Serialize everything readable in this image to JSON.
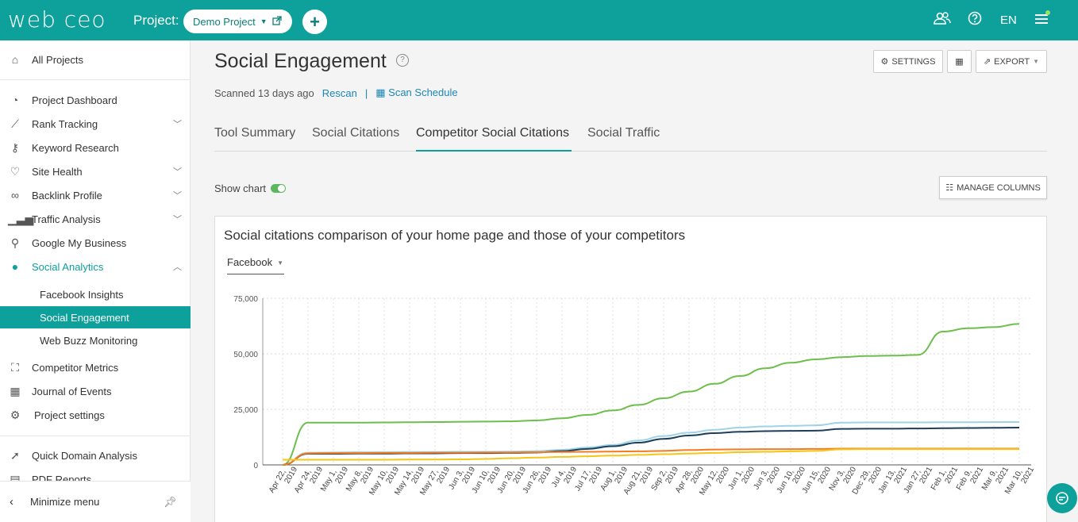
{
  "topbar": {
    "logo": "web ceo",
    "project_label": "Project:",
    "project_name": "Demo Project",
    "add_label": "+",
    "lang": "EN"
  },
  "sidebar": {
    "all_projects": "All Projects",
    "items": [
      {
        "label": "Project Dashboard",
        "icon": "dashboard-icon"
      },
      {
        "label": "Rank Tracking",
        "icon": "chart-icon"
      },
      {
        "label": "Keyword Research",
        "icon": "key-icon"
      },
      {
        "label": "Site Health",
        "icon": "heartbeat-icon"
      },
      {
        "label": "Backlink Profile",
        "icon": "link-icon"
      },
      {
        "label": "Traffic Analysis",
        "icon": "bars-icon"
      },
      {
        "label": "Google My Business",
        "icon": "map-pin-icon"
      },
      {
        "label": "Social Analytics",
        "icon": "chat-icon"
      }
    ],
    "sub_items": [
      "Facebook Insights",
      "Social Engagement",
      "Web Buzz Monitoring"
    ],
    "items2": [
      {
        "label": "Competitor Metrics",
        "icon": "binoculars-icon"
      },
      {
        "label": "Journal of Events",
        "icon": "calendar-icon"
      },
      {
        "label": "Project settings",
        "icon": "gear-icon"
      }
    ],
    "items3": [
      {
        "label": "Quick Domain Analysis",
        "icon": "rocket-icon"
      },
      {
        "label": "PDF Reports",
        "icon": "pdf-icon"
      }
    ],
    "minimize": "Minimize menu"
  },
  "main": {
    "title": "Social Engagement",
    "settings_label": "SETTINGS",
    "export_label": "EXPORT",
    "scanned": "Scanned 13 days ago",
    "rescan": "Rescan",
    "separator": "|",
    "scan_schedule": "Scan Schedule",
    "tabs": [
      "Tool Summary",
      "Social Citations",
      "Competitor Social Citations",
      "Social Traffic"
    ],
    "show_chart": "Show chart",
    "manage_columns": "MANAGE COLUMNS",
    "chart_title": "Social citations comparison of your home page and those of your competitors",
    "network": "Facebook"
  },
  "colors": {
    "brand": "#0ea09a",
    "green": "#6dbf4b",
    "light_blue": "#9fd3e6",
    "navy": "#1e3f5a",
    "orange": "#f47b20",
    "yellow": "#f5c518"
  },
  "chart_data": {
    "type": "line",
    "categories": [
      "Apr 22, 2019",
      "Apr 24, 2019",
      "May 1, 2019",
      "May 8, 2019",
      "May 10, 2019",
      "May 14, 2019",
      "May 27, 2019",
      "Jun 3, 2019",
      "Jun 10, 2019",
      "Jun 20, 2019",
      "Jun 26, 2019",
      "Jul 4, 2019",
      "Jul 17, 2019",
      "Aug 1, 2019",
      "Aug 21, 2019",
      "Sep 2, 2019",
      "Apr 28, 2020",
      "May 12, 2020",
      "Jun 1, 2020",
      "Jun 3, 2020",
      "Jun 10, 2020",
      "Jun 15, 2020",
      "Nov 3, 2020",
      "Dec 29, 2020",
      "Jan 13, 2021",
      "Jan 27, 2021",
      "Feb 1, 2021",
      "Feb 9, 2021",
      "Mar 9, 2021",
      "Mar 10, 2021"
    ],
    "ylim": [
      0,
      75000
    ],
    "yticks": [
      "0",
      "25,000",
      "50,000",
      "75,000"
    ],
    "series": [
      {
        "color": "#6dbf4b",
        "values": [
          0,
          19000,
          19000,
          19000,
          19100,
          19200,
          19300,
          19400,
          19500,
          19600,
          20000,
          21000,
          22500,
          24500,
          27000,
          30000,
          33000,
          36500,
          40000,
          43500,
          46000,
          47500,
          48500,
          49000,
          49200,
          49500,
          60000,
          61500,
          62000,
          63500
        ]
      },
      {
        "color": "#9fd3e6",
        "values": [
          0,
          5500,
          5600,
          5700,
          5700,
          5800,
          5800,
          5900,
          5900,
          6000,
          6200,
          6800,
          7800,
          9000,
          11000,
          13000,
          14500,
          15800,
          16800,
          17300,
          17600,
          17800,
          19000,
          19100,
          19100,
          19100,
          19200,
          19200,
          19300,
          19300
        ]
      },
      {
        "color": "#1e3f5a",
        "values": [
          0,
          5000,
          5000,
          5100,
          5100,
          5200,
          5200,
          5300,
          5300,
          5400,
          5600,
          6200,
          7200,
          8400,
          10000,
          11700,
          13200,
          14300,
          14900,
          15200,
          15300,
          15400,
          16200,
          16300,
          16300,
          16400,
          16500,
          16600,
          16700,
          16800
        ]
      },
      {
        "color": "#f47b20",
        "values": [
          0,
          5200,
          5300,
          5300,
          5400,
          5400,
          5500,
          5500,
          5600,
          5600,
          5700,
          5800,
          5900,
          6000,
          6100,
          6300,
          6700,
          6900,
          7000,
          7100,
          7100,
          7200,
          7300,
          7300,
          7300,
          7300,
          7300,
          7300,
          7300,
          7300
        ]
      },
      {
        "color": "#f5c518",
        "values": [
          2300,
          2300,
          2300,
          2300,
          2300,
          2400,
          2400,
          2500,
          2700,
          3000,
          3300,
          3600,
          3900,
          4200,
          4500,
          4800,
          5100,
          5400,
          5700,
          5900,
          6100,
          6300,
          7000,
          7100,
          7100,
          7100,
          7100,
          7100,
          7100,
          7100
        ]
      }
    ],
    "grid": true
  }
}
